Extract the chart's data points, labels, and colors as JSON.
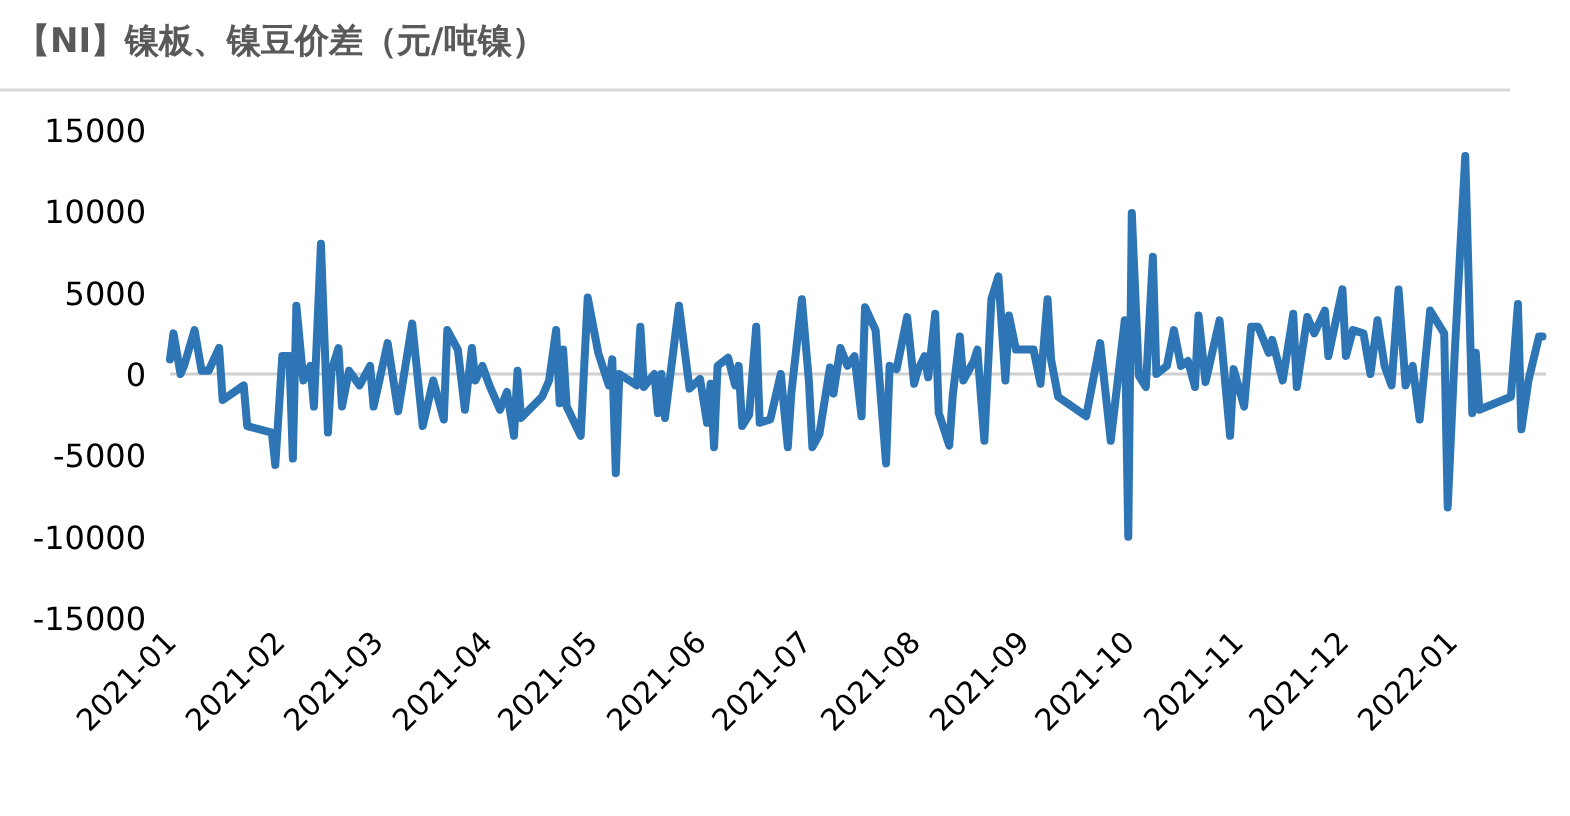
{
  "chart_data": {
    "type": "line",
    "title": "【NI】镍板、镍豆价差（元/吨镍）",
    "x": [
      "2021-01-01",
      "2021-01-02",
      "2021-01-04",
      "2021-01-05",
      "2021-01-08",
      "2021-01-10",
      "2021-01-12",
      "2021-01-15",
      "2021-01-16",
      "2021-01-22",
      "2021-01-23",
      "2021-01-30",
      "2021-01-31",
      "2021-02-02",
      "2021-02-04",
      "2021-02-05",
      "2021-02-06",
      "2021-02-08",
      "2021-02-10",
      "2021-02-11",
      "2021-02-13",
      "2021-02-15",
      "2021-02-16",
      "2021-02-18",
      "2021-02-19",
      "2021-02-21",
      "2021-02-24",
      "2021-02-27",
      "2021-02-28",
      "2021-03-04",
      "2021-03-07",
      "2021-03-11",
      "2021-03-14",
      "2021-03-17",
      "2021-03-20",
      "2021-03-21",
      "2021-03-24",
      "2021-03-26",
      "2021-03-28",
      "2021-03-29",
      "2021-03-31",
      "2021-04-02",
      "2021-04-05",
      "2021-04-07",
      "2021-04-09",
      "2021-04-10",
      "2021-04-11",
      "2021-04-17",
      "2021-04-19",
      "2021-04-21",
      "2021-04-22",
      "2021-04-23",
      "2021-04-24",
      "2021-04-28",
      "2021-04-30",
      "2021-05-03",
      "2021-05-06",
      "2021-05-07",
      "2021-05-08",
      "2021-05-09",
      "2021-05-14",
      "2021-05-15",
      "2021-05-16",
      "2021-05-19",
      "2021-05-20",
      "2021-05-21",
      "2021-05-22",
      "2021-05-26",
      "2021-05-29",
      "2021-06-01",
      "2021-06-03",
      "2021-06-04",
      "2021-06-05",
      "2021-06-06",
      "2021-06-09",
      "2021-06-11",
      "2021-06-12",
      "2021-06-13",
      "2021-06-15",
      "2021-06-17",
      "2021-06-18",
      "2021-06-21",
      "2021-06-24",
      "2021-06-26",
      "2021-06-27",
      "2021-06-30",
      "2021-07-02",
      "2021-07-03",
      "2021-07-05",
      "2021-07-08",
      "2021-07-09",
      "2021-07-11",
      "2021-07-13",
      "2021-07-15",
      "2021-07-17",
      "2021-07-18",
      "2021-07-21",
      "2021-07-24",
      "2021-07-25",
      "2021-07-27",
      "2021-07-30",
      "2021-08-01",
      "2021-08-02",
      "2021-08-04",
      "2021-08-05",
      "2021-08-07",
      "2021-08-08",
      "2021-08-11",
      "2021-08-12",
      "2021-08-14",
      "2021-08-15",
      "2021-08-18",
      "2021-08-19",
      "2021-08-21",
      "2021-08-23",
      "2021-08-25",
      "2021-08-27",
      "2021-08-28",
      "2021-08-30",
      "2021-09-04",
      "2021-09-06",
      "2021-09-08",
      "2021-09-09",
      "2021-09-11",
      "2021-09-19",
      "2021-09-23",
      "2021-09-26",
      "2021-09-30",
      "2021-10-01",
      "2021-10-02",
      "2021-10-04",
      "2021-10-06",
      "2021-10-08",
      "2021-10-09",
      "2021-10-12",
      "2021-10-14",
      "2021-10-16",
      "2021-10-18",
      "2021-10-20",
      "2021-10-21",
      "2021-10-23",
      "2021-10-27",
      "2021-10-30",
      "2021-10-31",
      "2021-11-03",
      "2021-11-05",
      "2021-11-07",
      "2021-11-10",
      "2021-11-11",
      "2021-11-14",
      "2021-11-17",
      "2021-11-18",
      "2021-11-21",
      "2021-11-23",
      "2021-11-26",
      "2021-11-27",
      "2021-12-01",
      "2021-12-02",
      "2021-12-04",
      "2021-12-07",
      "2021-12-09",
      "2021-12-11",
      "2021-12-13",
      "2021-12-15",
      "2021-12-17",
      "2021-12-19",
      "2021-12-21",
      "2021-12-23",
      "2021-12-26",
      "2021-12-30",
      "2021-12-31",
      "2022-01-02",
      "2022-01-05",
      "2022-01-07",
      "2022-01-08",
      "2022-01-09",
      "2022-01-18",
      "2022-01-20",
      "2022-01-21",
      "2022-01-23",
      "2022-01-26",
      "2022-01-27"
    ],
    "series": [
      {
        "color": "#2e75b6",
        "values": [
          900,
          2500,
          0,
          500,
          2700,
          200,
          200,
          1600,
          -1600,
          -700,
          -3200,
          -3600,
          -5600,
          1100,
          1100,
          -5200,
          4200,
          -400,
          500,
          -2000,
          8000,
          -3600,
          200,
          1600,
          -2000,
          200,
          -700,
          500,
          -2000,
          1900,
          -2300,
          3100,
          -3200,
          -400,
          -2800,
          2700,
          1500,
          -2200,
          1600,
          -400,
          500,
          -700,
          -2200,
          -1100,
          -3800,
          200,
          -2700,
          -1400,
          -400,
          2700,
          -1800,
          1500,
          -2000,
          -3800,
          4700,
          1300,
          -700,
          900,
          -6100,
          0,
          -700,
          2900,
          -800,
          0,
          -2400,
          0,
          -2700,
          4200,
          -900,
          -300,
          -3000,
          -600,
          -4500,
          500,
          1000,
          -700,
          500,
          -3200,
          -2500,
          2900,
          -3000,
          -2800,
          0,
          -4500,
          -1200,
          4600,
          -400,
          -4500,
          -3700,
          400,
          -1200,
          1600,
          500,
          1100,
          -2600,
          4100,
          2700,
          -5500,
          500,
          300,
          3500,
          -600,
          200,
          1100,
          -200,
          3700,
          -2400,
          -4400,
          -1300,
          2300,
          -400,
          800,
          1500,
          -4100,
          4600,
          6000,
          -400,
          3600,
          1500,
          1500,
          -600,
          4600,
          900,
          -1400,
          -2600,
          1900,
          -4100,
          3300,
          -10000,
          9900,
          -100,
          -800,
          7200,
          0,
          500,
          2700,
          500,
          800,
          -800,
          3600,
          -500,
          3300,
          -3800,
          300,
          -2000,
          2900,
          2900,
          1300,
          2100,
          -400,
          3700,
          -800,
          3500,
          2500,
          3900,
          1100,
          5200,
          1100,
          2700,
          2500,
          0,
          3300,
          500,
          -700,
          5200,
          -700,
          500,
          -2800,
          3900,
          2500,
          -8200,
          1300,
          13400,
          -2400,
          1300,
          -2200,
          -1400,
          4300,
          -3400,
          -400,
          2300,
          2300
        ]
      }
    ],
    "xlim": [
      "2021-01-01",
      "2022-01-28"
    ],
    "xticks": [
      "2021-01",
      "2021-02",
      "2021-03",
      "2021-04",
      "2021-05",
      "2021-06",
      "2021-07",
      "2021-08",
      "2021-09",
      "2021-10",
      "2021-11",
      "2021-12",
      "2022-01"
    ],
    "ylim": [
      -15000,
      15000
    ],
    "yticks": [
      -15000,
      -10000,
      -5000,
      0,
      5000,
      10000,
      15000
    ],
    "ref_lines": [
      {
        "axis": "y",
        "value": 0,
        "color": "#d0d0d0"
      }
    ],
    "marker": "none",
    "line_style": "solid"
  }
}
